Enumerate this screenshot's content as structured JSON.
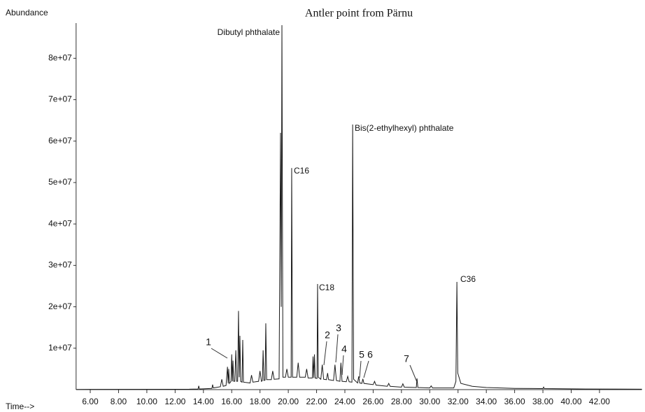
{
  "chart_data": {
    "type": "line",
    "title": "Antler point from Pärnu",
    "y_label": "Abundance",
    "x_label": "Time-->",
    "xlim": [
      5,
      45
    ],
    "ylim": [
      0,
      88500000.0
    ],
    "xticks": [
      {
        "value": 6,
        "label": "6.00"
      },
      {
        "value": 8,
        "label": "8.00"
      },
      {
        "value": 10,
        "label": "10.00"
      },
      {
        "value": 12,
        "label": "12.00"
      },
      {
        "value": 14,
        "label": "14.00"
      },
      {
        "value": 16,
        "label": "16.00"
      },
      {
        "value": 18,
        "label": "18.00"
      },
      {
        "value": 20,
        "label": "20.00"
      },
      {
        "value": 22,
        "label": "22.00"
      },
      {
        "value": 24,
        "label": "24.00"
      },
      {
        "value": 26,
        "label": "26.00"
      },
      {
        "value": 28,
        "label": "28.00"
      },
      {
        "value": 30,
        "label": "30.00"
      },
      {
        "value": 32,
        "label": "32.00"
      },
      {
        "value": 34,
        "label": "34.00"
      },
      {
        "value": 36,
        "label": "36.00"
      },
      {
        "value": 38,
        "label": "38.00"
      },
      {
        "value": 40,
        "label": "40.00"
      },
      {
        "value": 42,
        "label": "42.00"
      }
    ],
    "yticks": [
      {
        "value": 10000000.0,
        "label": "1e+07"
      },
      {
        "value": 20000000.0,
        "label": "2e+07"
      },
      {
        "value": 30000000.0,
        "label": "3e+07"
      },
      {
        "value": 40000000.0,
        "label": "4e+07"
      },
      {
        "value": 50000000.0,
        "label": "5e+07"
      },
      {
        "value": 60000000.0,
        "label": "6e+07"
      },
      {
        "value": 70000000.0,
        "label": "7e+07"
      },
      {
        "value": 80000000.0,
        "label": "8e+07"
      }
    ],
    "annotations": [
      "Dibutyl phthalate",
      "C16",
      "Bis(2-ethylhexyl) phthalate",
      "C18",
      "C36",
      "1",
      "2",
      "3",
      "4",
      "5",
      "6",
      "7"
    ],
    "x": [
      5.0,
      13.0,
      13.62,
      13.67,
      13.72,
      14.6,
      14.65,
      14.7,
      15.2,
      15.3,
      15.4,
      15.6,
      15.7,
      15.75,
      15.79,
      15.84,
      15.95,
      16.0,
      16.05,
      16.09,
      16.14,
      16.22,
      16.29,
      16.35,
      16.42,
      16.48,
      16.53,
      16.58,
      16.63,
      16.73,
      16.78,
      16.83,
      17.3,
      17.4,
      17.5,
      17.9,
      18.0,
      18.1,
      18.17,
      18.22,
      18.28,
      18.36,
      18.41,
      18.47,
      18.8,
      18.9,
      19.0,
      19.35,
      19.45,
      19.5,
      19.55,
      19.62,
      19.8,
      19.9,
      20.0,
      20.2,
      20.24,
      20.3,
      20.6,
      20.7,
      20.8,
      21.2,
      21.3,
      21.4,
      21.7,
      21.75,
      21.8,
      21.85,
      21.9,
      22.03,
      22.07,
      22.12,
      22.3,
      22.4,
      22.5,
      22.7,
      22.78,
      22.85,
      23.2,
      23.3,
      23.4,
      23.65,
      23.72,
      23.8,
      24.1,
      24.2,
      24.3,
      24.5,
      24.55,
      24.62,
      24.9,
      24.98,
      25.05,
      25.2,
      25.27,
      25.35,
      26.0,
      26.1,
      26.2,
      27.0,
      27.1,
      27.2,
      28.0,
      28.1,
      28.2,
      29.05,
      29.1,
      29.16,
      30.0,
      30.1,
      30.2,
      31.7,
      31.85,
      31.92,
      31.98,
      32.2,
      33.0,
      34.0,
      36.0,
      38.0,
      38.05,
      38.1,
      41.0,
      45.0
    ],
    "series": [
      {
        "color": "#1a1a1a",
        "values": [
          50000.0,
          100000.0,
          150000.0,
          900000.0,
          150000.0,
          300000.0,
          1200000.0,
          400000.0,
          700000.0,
          2500000.0,
          800000.0,
          1000000.0,
          5500000.0,
          1500000.0,
          5000000.0,
          1500000.0,
          2000000.0,
          8500000.0,
          2000000.0,
          7000000.0,
          2000000.0,
          2000000.0,
          9500000.0,
          2000000.0,
          2000000.0,
          19000000.0,
          3000000.0,
          13000000.0,
          2000000.0,
          1800000.0,
          12000000.0,
          1800000.0,
          1600000.0,
          3500000.0,
          1800000.0,
          2000000.0,
          4500000.0,
          2000000.0,
          2200000.0,
          9500000.0,
          2200000.0,
          2300000.0,
          16000000.0,
          2400000.0,
          2400000.0,
          4500000.0,
          2500000.0,
          2600000.0,
          62000000.0,
          20000000.0,
          88000000.0,
          3000000.0,
          3000000.0,
          5000000.0,
          3000000.0,
          3000000.0,
          53500000.0,
          3000000.0,
          3000000.0,
          6500000.0,
          3000000.0,
          3000000.0,
          5000000.0,
          2800000.0,
          2800000.0,
          8000000.0,
          2800000.0,
          8500000.0,
          2800000.0,
          2700000.0,
          25500000.0,
          3000000.0,
          2500000.0,
          6000000.0,
          2500000.0,
          2400000.0,
          4000000.0,
          2400000.0,
          2200000.0,
          6000000.0,
          2200000.0,
          2000000.0,
          6500000.0,
          2000000.0,
          1900000.0,
          3200000.0,
          1900000.0,
          1800000.0,
          64000000.0,
          2500000.0,
          1600000.0,
          3200000.0,
          1600000.0,
          1500000.0,
          2600000.0,
          1500000.0,
          1200000.0,
          2000000.0,
          1100000.0,
          800000.0,
          1500000.0,
          800000.0,
          600000.0,
          1400000.0,
          600000.0,
          500000.0,
          2700000.0,
          500000.0,
          400000.0,
          900000.0,
          400000.0,
          400000.0,
          2000000.0,
          26000000.0,
          4000000.0,
          1500000.0,
          800000.0,
          500000.0,
          300000.0,
          250000.0,
          600000.0,
          250000.0,
          150000.0,
          100000.0
        ]
      }
    ]
  }
}
